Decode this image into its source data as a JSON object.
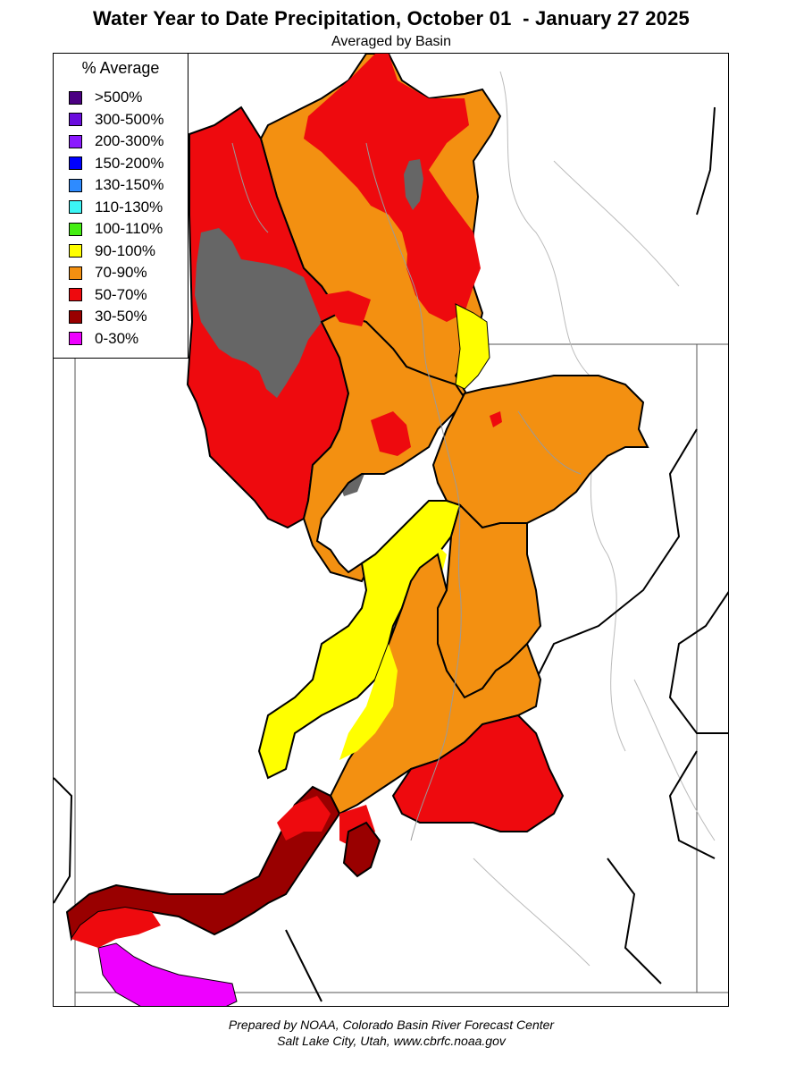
{
  "title": "Water Year to Date Precipitation, October 01  - January 27 2025",
  "subtitle": "Averaged by Basin",
  "legend": {
    "title": "% Average",
    "items": [
      {
        "label": ">500%",
        "color": "#4b0082"
      },
      {
        "label": "300-500%",
        "color": "#6a0ddd"
      },
      {
        "label": "200-300%",
        "color": "#8b1aff"
      },
      {
        "label": "150-200%",
        "color": "#0000ff"
      },
      {
        "label": "130-150%",
        "color": "#2e8bff"
      },
      {
        "label": "110-130%",
        "color": "#3cf5f5"
      },
      {
        "label": "100-110%",
        "color": "#44ee11"
      },
      {
        "label": "90-100%",
        "color": "#ffff00"
      },
      {
        "label": "70-90%",
        "color": "#f39011"
      },
      {
        "label": "50-70%",
        "color": "#ee0a0e"
      },
      {
        "label": "30-50%",
        "color": "#990000"
      },
      {
        "label": "0-30%",
        "color": "#ee00ff"
      }
    ]
  },
  "map_colors": {
    "water": "#666666",
    "boundary": "#000000",
    "river": "#9a9a9a"
  },
  "footer": {
    "line1": "Prepared by NOAA, Colorado Basin River Forecast Center",
    "line2": "Salt Lake City, Utah, www.cbrfc.noaa.gov"
  }
}
